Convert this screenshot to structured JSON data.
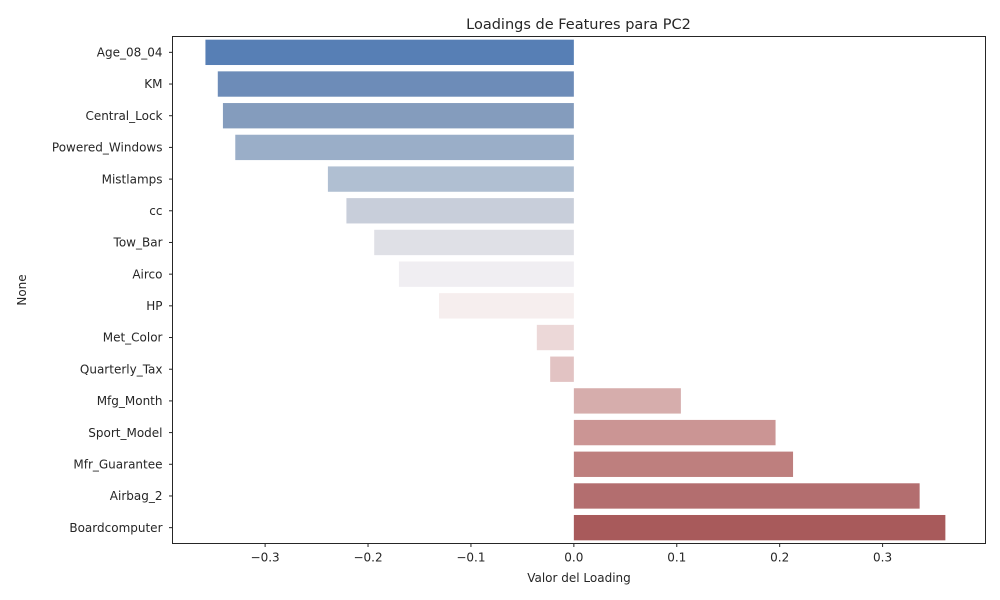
{
  "chart_data": {
    "type": "bar",
    "orientation": "horizontal",
    "title": "Loadings de Features para PC2",
    "xlabel": "Valor del Loading",
    "ylabel": "None",
    "xlim": [
      -0.39,
      0.4
    ],
    "xticks": [
      -0.3,
      -0.2,
      -0.1,
      0.0,
      0.1,
      0.2,
      0.3
    ],
    "xtick_labels": [
      "−0.3",
      "−0.2",
      "−0.1",
      "0.0",
      "0.1",
      "0.2",
      "0.3"
    ],
    "grid": false,
    "legend": "none",
    "categories": [
      "Age_08_04",
      "KM",
      "Central_Lock",
      "Powered_Windows",
      "Mistlamps",
      "cc",
      "Tow_Bar",
      "Airco",
      "HP",
      "Met_Color",
      "Quarterly_Tax",
      "Mfg_Month",
      "Sport_Model",
      "Mfr_Guarantee",
      "Airbag_2",
      "Boardcomputer"
    ],
    "values": [
      -0.358,
      -0.346,
      -0.341,
      -0.329,
      -0.239,
      -0.221,
      -0.194,
      -0.17,
      -0.131,
      -0.036,
      -0.023,
      0.104,
      0.196,
      0.213,
      0.336,
      0.361
    ],
    "colors": [
      "#577fb5",
      "#6d8cb8",
      "#849cbd",
      "#9aaec8",
      "#b0bfd2",
      "#c8ceda",
      "#dfe0e6",
      "#f0eef2",
      "#f6eeee",
      "#ecd8d8",
      "#e2c3c3",
      "#d6adac",
      "#cb9594",
      "#be7f7e",
      "#b36e6f",
      "#a85a5b"
    ]
  }
}
